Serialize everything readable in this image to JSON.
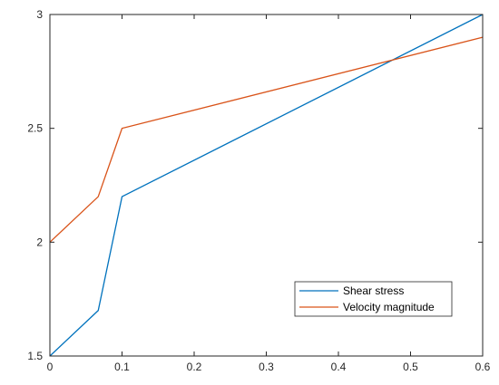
{
  "chart_data": {
    "type": "line",
    "title": "",
    "xlabel": "",
    "ylabel": "",
    "xlim": [
      0,
      0.6
    ],
    "ylim": [
      1.5,
      3
    ],
    "xticks": [
      0,
      0.1,
      0.2,
      0.3,
      0.4,
      0.5,
      0.6
    ],
    "xtick_labels": [
      "0",
      "0.1",
      "0.2",
      "0.3",
      "0.4",
      "0.5",
      "0.6"
    ],
    "yticks": [
      1.5,
      2,
      2.5,
      3
    ],
    "ytick_labels": [
      "1.5",
      "2",
      "2.5",
      "3"
    ],
    "grid": false,
    "legend_position": "lower-right",
    "series": [
      {
        "name": "Shear stress",
        "color": "#0072BD",
        "x": [
          0,
          0.067,
          0.1,
          0.6
        ],
        "y": [
          1.5,
          1.7,
          2.2,
          3.0
        ]
      },
      {
        "name": "Velocity magnitude",
        "color": "#D95319",
        "x": [
          0,
          0.067,
          0.1,
          0.6
        ],
        "y": [
          2.0,
          2.2,
          2.5,
          2.9
        ]
      }
    ]
  }
}
